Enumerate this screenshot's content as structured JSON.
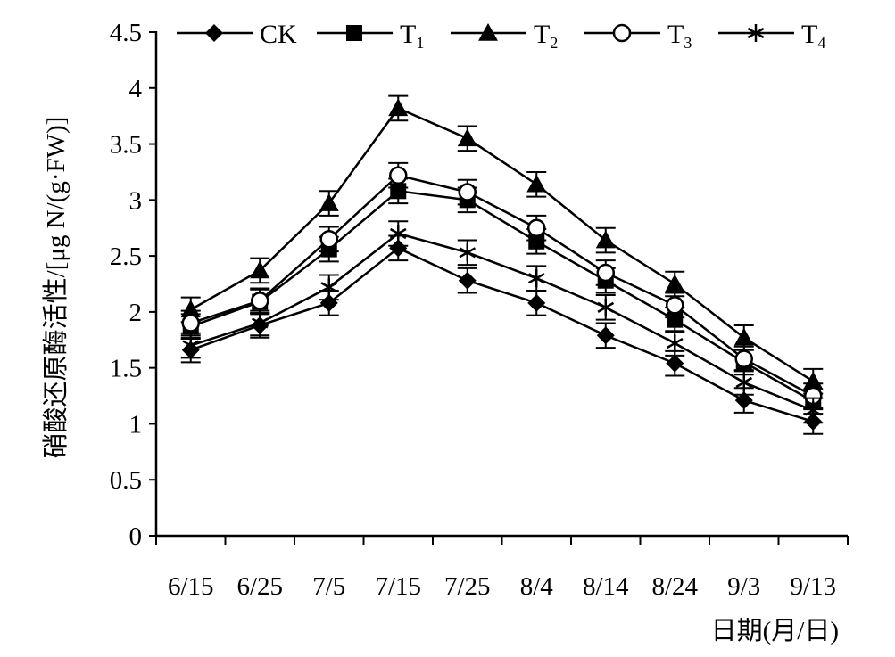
{
  "chart_data": {
    "type": "line",
    "title": "",
    "xlabel": "日期(月/日)",
    "ylabel": "硝酸还原酶活性/[μg N/(g·FW)]",
    "ylim": [
      0,
      4.5
    ],
    "yticks": [
      "0",
      "0.5",
      "1",
      "1.5",
      "2",
      "2.5",
      "3",
      "3.5",
      "4",
      "4.5"
    ],
    "categories": [
      "6/15",
      "6/25",
      "7/5",
      "7/15",
      "7/25",
      "8/4",
      "8/14",
      "8/24",
      "9/3",
      "9/13"
    ],
    "grid": false,
    "legend_position": "top",
    "error_bar": 0.11,
    "series": [
      {
        "name": "CK",
        "subscript": "",
        "marker": "diamond",
        "values": [
          1.66,
          1.88,
          2.08,
          2.57,
          2.28,
          2.08,
          1.79,
          1.54,
          1.21,
          1.02
        ]
      },
      {
        "name": "T",
        "subscript": "1",
        "marker": "square",
        "values": [
          1.87,
          2.09,
          2.56,
          3.08,
          3.0,
          2.63,
          2.28,
          1.93,
          1.55,
          1.2
        ]
      },
      {
        "name": "T",
        "subscript": "2",
        "marker": "triangle",
        "values": [
          2.02,
          2.37,
          2.97,
          3.82,
          3.55,
          3.14,
          2.64,
          2.25,
          1.77,
          1.38
        ]
      },
      {
        "name": "T",
        "subscript": "3",
        "marker": "circle",
        "values": [
          1.9,
          2.1,
          2.65,
          3.22,
          3.07,
          2.75,
          2.35,
          2.06,
          1.58,
          1.25
        ]
      },
      {
        "name": "T",
        "subscript": "4",
        "marker": "asterisk",
        "values": [
          1.7,
          1.9,
          2.22,
          2.7,
          2.53,
          2.3,
          2.04,
          1.72,
          1.37,
          1.12
        ]
      }
    ]
  }
}
